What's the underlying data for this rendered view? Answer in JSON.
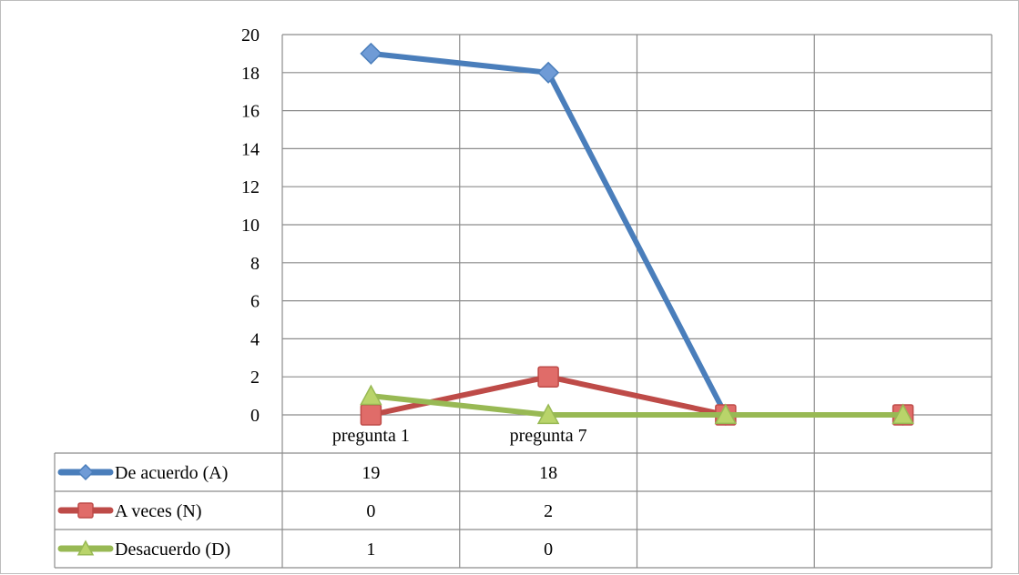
{
  "chart_data": {
    "type": "line",
    "title": "",
    "xlabel": "",
    "ylabel": "",
    "categories": [
      "pregunta 1",
      "pregunta 7",
      "",
      ""
    ],
    "ylim": [
      0,
      20
    ],
    "y_ticks": [
      0,
      2,
      4,
      6,
      8,
      10,
      12,
      14,
      16,
      18,
      20
    ],
    "grid": true,
    "legend": "data-table",
    "series": [
      {
        "name": "De acuerdo (A)",
        "values": [
          19,
          18,
          0,
          0
        ],
        "table_values": [
          "19",
          "18",
          "",
          ""
        ],
        "color": "#4a7ebb",
        "marker": "diamond",
        "marker_fill": "#6f9bd6"
      },
      {
        "name": "A veces (N)",
        "values": [
          0,
          2,
          0,
          0
        ],
        "table_values": [
          "0",
          "2",
          "",
          ""
        ],
        "color": "#be4b48",
        "marker": "square",
        "marker_fill": "#e06c69"
      },
      {
        "name": "Desacuerdo (D)",
        "values": [
          1,
          0,
          0,
          0
        ],
        "table_values": [
          "1",
          "0",
          "",
          ""
        ],
        "color": "#98b954",
        "marker": "triangle",
        "marker_fill": "#b9d46a"
      }
    ]
  }
}
